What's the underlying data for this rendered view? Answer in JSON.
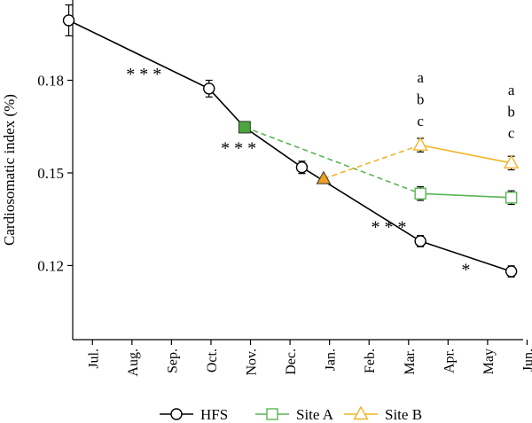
{
  "chart_data": {
    "type": "line",
    "ylabel": "Cardiosomatic index (%)",
    "ylim": [
      0.096,
      0.206
    ],
    "yticks": [
      0.12,
      0.15,
      0.18
    ],
    "ytick_labels": [
      "0.12",
      "0.15",
      "0.18"
    ],
    "xlim": [
      6.5,
      17.9
    ],
    "xticks": [
      {
        "pos": 7,
        "label": "Jul."
      },
      {
        "pos": 8,
        "label": "Aug."
      },
      {
        "pos": 9,
        "label": "Sep."
      },
      {
        "pos": 10,
        "label": "Oct."
      },
      {
        "pos": 11,
        "label": "Nov."
      },
      {
        "pos": 12,
        "label": "Dec."
      },
      {
        "pos": 13,
        "label": "Jan."
      },
      {
        "pos": 14,
        "label": "Feb."
      },
      {
        "pos": 15,
        "label": "Mar."
      },
      {
        "pos": 16,
        "label": "Apr."
      },
      {
        "pos": 17,
        "label": "May"
      },
      {
        "pos": 18,
        "label": "Jun."
      }
    ],
    "series": [
      {
        "name": "HFS",
        "color": "#000000",
        "marker": "circle",
        "dashed": false,
        "points": [
          {
            "x": 6.4,
            "y": 0.1994,
            "err": 0.005
          },
          {
            "x": 9.95,
            "y": 0.1773,
            "err": 0.0027
          },
          {
            "x": 10.85,
            "y": 0.1648,
            "err": 0
          },
          {
            "x": 12.3,
            "y": 0.1518,
            "err": 0.002
          },
          {
            "x": 15.3,
            "y": 0.1279,
            "err": 0.0018
          },
          {
            "x": 17.6,
            "y": 0.1181,
            "err": 0.0018
          }
        ]
      },
      {
        "name": "Site A",
        "color": "#5ab552",
        "marker": "square",
        "legend_marker": "square-open",
        "points": [
          {
            "x": 15.3,
            "y": 0.1433,
            "err": 0.0022
          },
          {
            "x": 17.6,
            "y": 0.142,
            "err": 0.0022
          }
        ]
      },
      {
        "name": "Site B",
        "color": "#f0b429",
        "marker": "triangle",
        "legend_marker": "triangle-open",
        "points": [
          {
            "x": 15.3,
            "y": 0.159,
            "err": 0.0022
          },
          {
            "x": 17.6,
            "y": 0.1532,
            "err": 0.0022
          }
        ]
      }
    ],
    "transfer_markers": [
      {
        "series": "Site A",
        "x": 10.85,
        "y": 0.1648,
        "shape": "square-filled",
        "color": "#4aa63c"
      },
      {
        "series": "Site B",
        "x": 12.85,
        "y": 0.1481,
        "shape": "triangle-filled",
        "color": "#f0a020"
      }
    ],
    "dashed_links": [
      {
        "series": "Site A",
        "color": "#5ab552",
        "from": {
          "x": 10.85,
          "y": 0.1648
        },
        "to": {
          "x": 15.3,
          "y": 0.1433
        }
      },
      {
        "series": "Site B",
        "color": "#f0b429",
        "from": {
          "x": 12.85,
          "y": 0.1481
        },
        "to": {
          "x": 15.3,
          "y": 0.159
        }
      }
    ],
    "annotations": [
      {
        "text": "* * *",
        "x": 8.3,
        "y": 0.183
      },
      {
        "text": "* * *",
        "x": 10.7,
        "y": 0.159
      },
      {
        "text": "* * *",
        "x": 14.5,
        "y": 0.1335
      },
      {
        "text": "*",
        "x": 16.45,
        "y": 0.1197
      },
      {
        "text": "a",
        "x": 15.3,
        "y": 0.181
      },
      {
        "text": "b",
        "x": 15.3,
        "y": 0.174
      },
      {
        "text": "c",
        "x": 15.3,
        "y": 0.167
      },
      {
        "text": "a",
        "x": 17.6,
        "y": 0.177
      },
      {
        "text": "b",
        "x": 17.6,
        "y": 0.17
      },
      {
        "text": "c",
        "x": 17.6,
        "y": 0.163
      }
    ],
    "legend": {
      "placement": "bottom",
      "entries": [
        "HFS",
        "Site A",
        "Site B"
      ]
    },
    "grid": false
  }
}
